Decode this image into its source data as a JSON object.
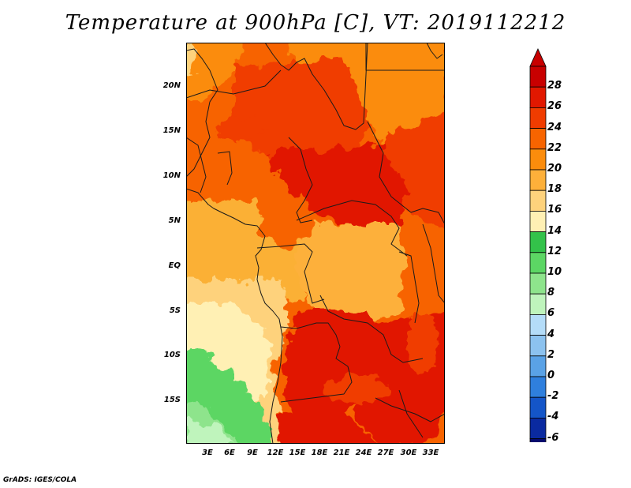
{
  "title": "Temperature at 900hPa [C], VT: 2019112212",
  "credit": "GrADS: IGES/COLA",
  "latitude_labels": [
    "20N",
    "15N",
    "10N",
    "5N",
    "EQ",
    "5S",
    "10S",
    "15S"
  ],
  "longitude_labels": [
    "3E",
    "6E",
    "9E",
    "12E",
    "15E",
    "18E",
    "21E",
    "24E",
    "27E",
    "30E",
    "33E"
  ],
  "colorbar": {
    "labels": [
      "28",
      "26",
      "24",
      "22",
      "20",
      "18",
      "16",
      "14",
      "12",
      "10",
      "8",
      "6",
      "4",
      "2",
      "0",
      "-2",
      "-4",
      "-6"
    ],
    "colors": [
      "#c80000",
      "#e11800",
      "#f03c00",
      "#f76400",
      "#fb8c0c",
      "#fdb03a",
      "#fed27c",
      "#fff0b4",
      "#33c24a",
      "#5cd664",
      "#8ee48c",
      "#bff4bc",
      "#b4dcf8",
      "#8cc2ef",
      "#5aa2e6",
      "#2f7fdd",
      "#1455c8",
      "#0a2aa0",
      "#050a6e"
    ],
    "above_max_color": "#c80000",
    "below_min_color": "#d8d8ff"
  },
  "colors": {
    "ocean_north": "#fbb034",
    "ocean_south": "#fed27c",
    "ocean_far_south": "#fff0b4",
    "coast_green": "#5cd664",
    "interior_hot": "#e11800",
    "interior_warm": "#f03c00",
    "interior_mid": "#f76400",
    "basin": "#fdb03a",
    "sahara": "#fb8c0c",
    "borders": "#1a1a1a"
  }
}
